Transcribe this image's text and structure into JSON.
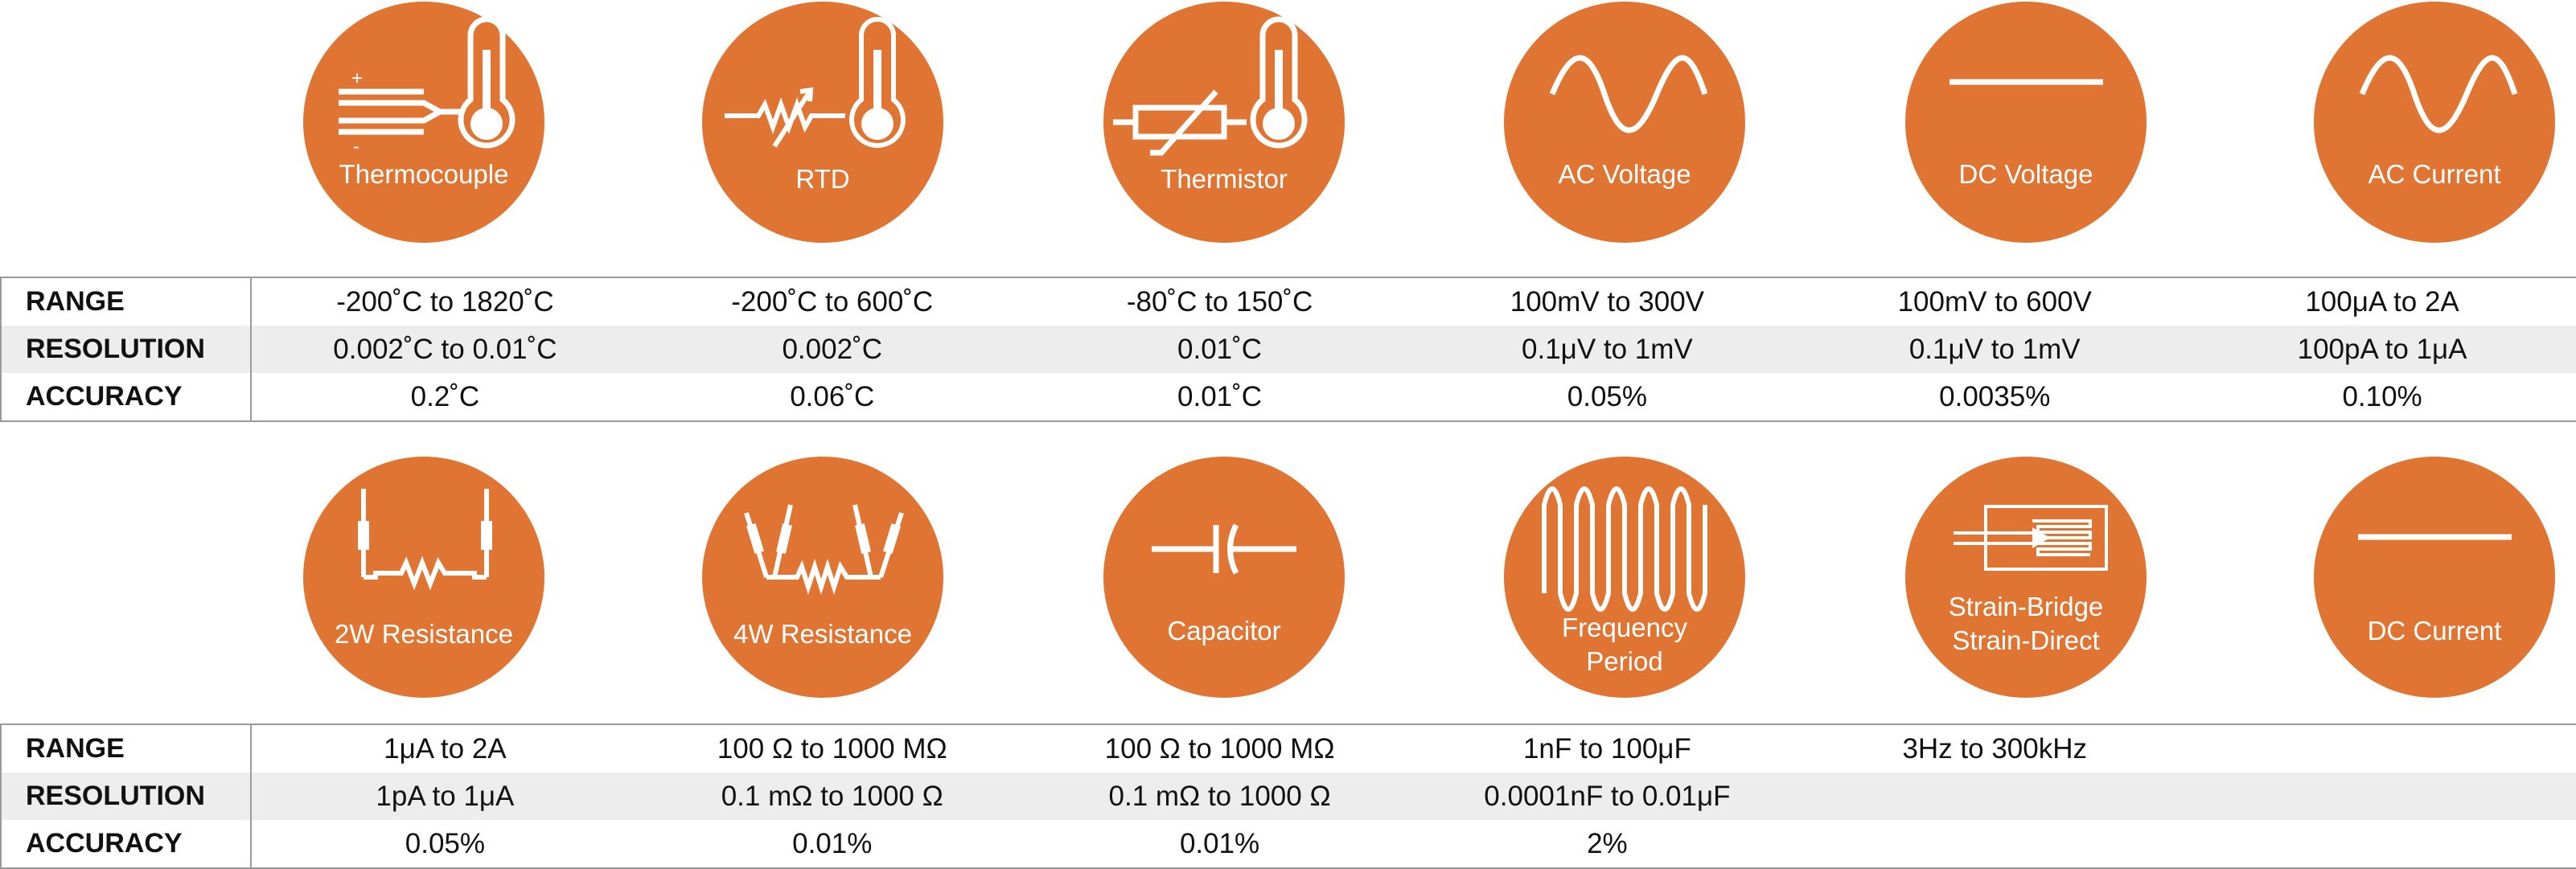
{
  "accent_color": "#e07533",
  "row1": {
    "icons": [
      {
        "label": "Thermocouple",
        "icon": "thermocouple-icon"
      },
      {
        "label": "RTD",
        "icon": "rtd-icon"
      },
      {
        "label": "Thermistor",
        "icon": "thermistor-icon"
      },
      {
        "label": "AC Voltage",
        "icon": "sine-wave-icon"
      },
      {
        "label": "DC Voltage",
        "icon": "dc-line-icon"
      },
      {
        "label": "AC Current",
        "icon": "sine-wave-icon"
      }
    ],
    "table": {
      "labels": [
        "RANGE",
        "RESOLUTION",
        "ACCURACY"
      ],
      "rows": [
        [
          "-200˚C to 1820˚C",
          "-200˚C to 600˚C",
          "-80˚C to 150˚C",
          "100mV to 300V",
          "100mV to 600V",
          "100μA to 2A"
        ],
        [
          "0.002˚C to 0.01˚C",
          "0.002˚C",
          "0.01˚C",
          "0.1μV to 1mV",
          "0.1μV to 1mV",
          "100pA to 1μA"
        ],
        [
          "0.2˚C",
          "0.06˚C",
          "0.01˚C",
          "0.05%",
          "0.0035%",
          "0.10%"
        ]
      ]
    }
  },
  "row2": {
    "icons": [
      {
        "label": "2W Resistance",
        "icon": "two-wire-resistance-icon"
      },
      {
        "label": "4W Resistance",
        "icon": "four-wire-resistance-icon"
      },
      {
        "label": "Capacitor",
        "icon": "capacitor-icon"
      },
      {
        "label": "Frequency\nPeriod",
        "icon": "square-wave-icon"
      },
      {
        "label": "Strain-Bridge\nStrain-Direct",
        "icon": "strain-gauge-icon"
      },
      {
        "label": "DC Current",
        "icon": "dc-line-icon"
      }
    ],
    "table": {
      "labels": [
        "RANGE",
        "RESOLUTION",
        "ACCURACY"
      ],
      "rows": [
        [
          "1μA to 2A",
          "100 Ω to 1000 MΩ",
          "100 Ω to 1000 MΩ",
          "1nF to 100μF",
          "3Hz to 300kHz",
          ""
        ],
        [
          "1pA to 1μA",
          "0.1 mΩ to 1000 Ω",
          "0.1 mΩ to 1000 Ω",
          "0.0001nF to 0.01μF",
          "",
          ""
        ],
        [
          "0.05%",
          "0.01%",
          "0.01%",
          "2%",
          "",
          ""
        ]
      ]
    }
  }
}
